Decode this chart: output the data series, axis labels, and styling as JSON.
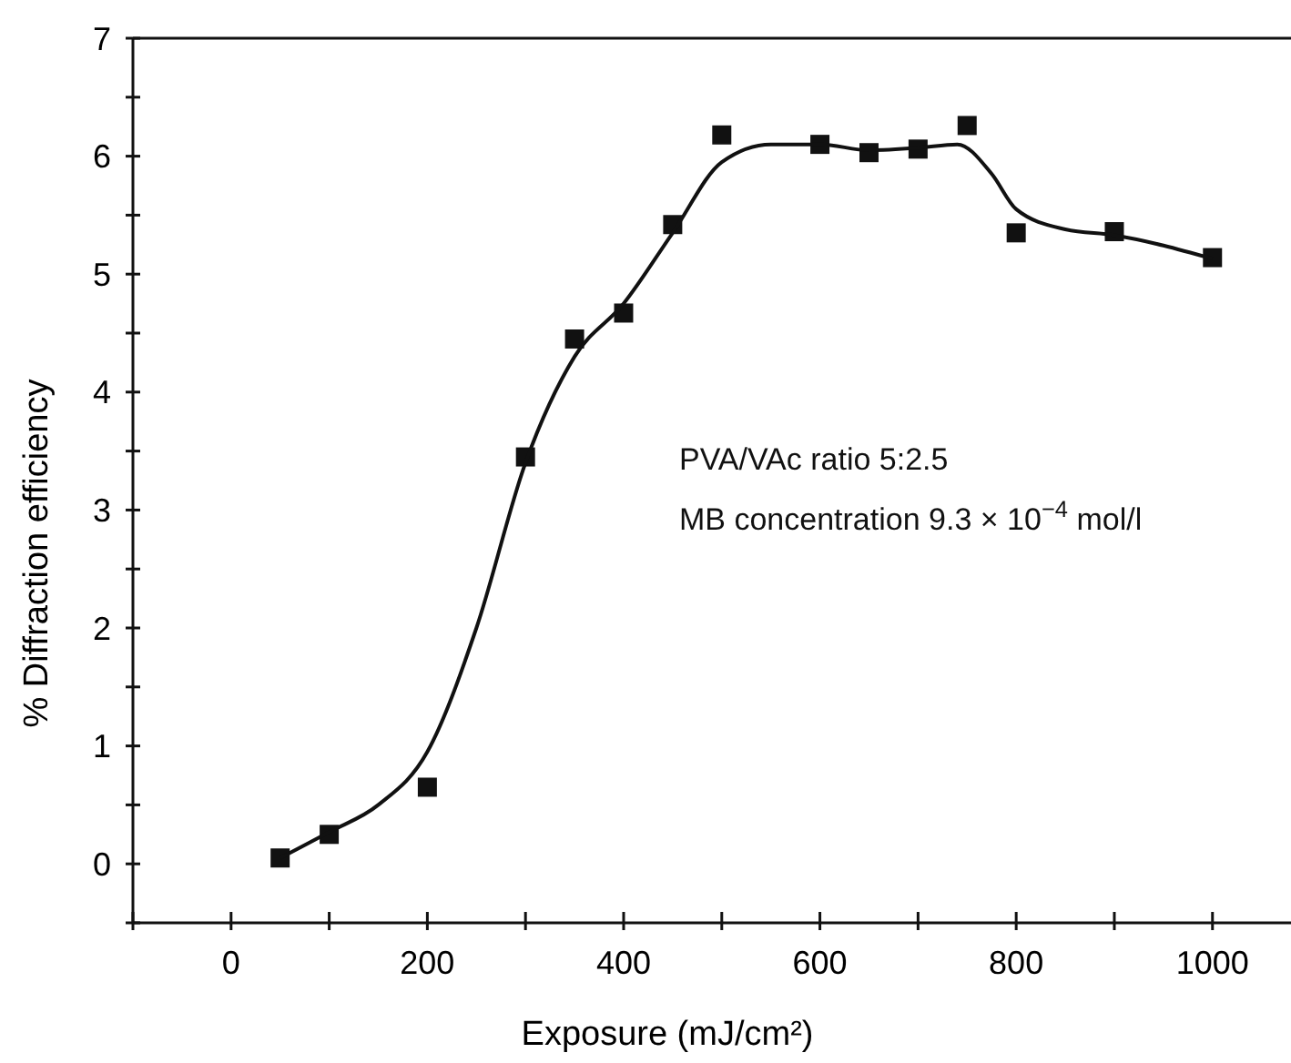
{
  "chart_data": {
    "type": "scatter",
    "xlabel": "Exposure (mJ/cm²)",
    "ylabel": "% Diffraction efficiency",
    "xlim": [
      -100,
      1080
    ],
    "ylim": [
      -0.5,
      7
    ],
    "xticks": [
      {
        "value": -100,
        "label": null
      },
      0,
      {
        "value": 100,
        "label": null
      },
      200,
      {
        "value": 300,
        "label": null
      },
      400,
      {
        "value": 500,
        "label": null
      },
      600,
      {
        "value": 700,
        "label": null
      },
      800,
      {
        "value": 900,
        "label": null
      },
      1000
    ],
    "yticks": [
      {
        "value": -0.5,
        "label": null
      },
      0,
      {
        "value": 0.5,
        "label": null
      },
      1,
      {
        "value": 1.5,
        "label": null
      },
      2,
      {
        "value": 2.5,
        "label": null
      },
      3,
      {
        "value": 3.5,
        "label": null
      },
      4,
      {
        "value": 4.5,
        "label": null
      },
      5,
      {
        "value": 5.5,
        "label": null
      },
      6,
      {
        "value": 6.5,
        "label": null
      },
      7
    ],
    "grid": false,
    "series": [
      {
        "color": "#111111",
        "marker": "square",
        "x": [
          50,
          100,
          200,
          300,
          350,
          400,
          450,
          500,
          600,
          650,
          700,
          750,
          800,
          900,
          1000
        ],
        "values": [
          0.05,
          0.25,
          0.65,
          3.45,
          4.45,
          4.67,
          5.42,
          6.18,
          6.1,
          6.03,
          6.06,
          6.26,
          5.35,
          5.36,
          5.14
        ]
      },
      {
        "type": "line",
        "color": "#111111",
        "marker": "none",
        "line_style": "solid",
        "x": [
          50,
          100,
          150,
          200,
          250,
          300,
          350,
          400,
          450,
          500,
          550,
          600,
          650,
          700,
          740,
          775,
          800,
          850,
          900,
          1000
        ],
        "values": [
          0.05,
          0.27,
          0.5,
          0.95,
          2.0,
          3.4,
          4.3,
          4.75,
          5.35,
          5.95,
          6.1,
          6.1,
          6.05,
          6.07,
          6.1,
          5.85,
          5.55,
          5.38,
          5.33,
          5.13
        ]
      }
    ],
    "annotations": [
      "PVA/VAc ratio 5:2.5",
      "MB concentration 9.3 × 10$^{−4}$ mol/l"
    ]
  }
}
